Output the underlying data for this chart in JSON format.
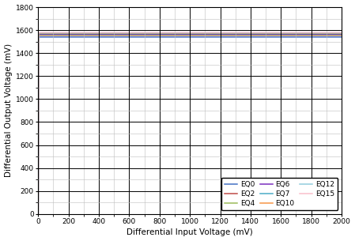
{
  "title": "",
  "xlabel": "Differential Input Voltage (mV)",
  "ylabel": "Differential Output Voltage (mV)",
  "xlim": [
    0,
    2000
  ],
  "ylim": [
    0,
    1800
  ],
  "xticks": [
    0,
    200,
    400,
    600,
    800,
    1000,
    1200,
    1400,
    1600,
    1800,
    2000
  ],
  "yticks": [
    0,
    200,
    400,
    600,
    800,
    1000,
    1200,
    1400,
    1600,
    1800
  ],
  "series": [
    {
      "label": "EQ0",
      "color": "#4472C4",
      "sat": 1540,
      "k": 1.8,
      "x0": 700
    },
    {
      "label": "EQ2",
      "color": "#BE4B48",
      "sat": 1555,
      "k": 1.8,
      "x0": 560
    },
    {
      "label": "EQ4",
      "color": "#9BBB59",
      "sat": 1560,
      "k": 1.8,
      "x0": 440
    },
    {
      "label": "EQ6",
      "color": "#7B2FBE",
      "sat": 1565,
      "k": 1.8,
      "x0": 340
    },
    {
      "label": "EQ7",
      "color": "#4BACC6",
      "sat": 1570,
      "k": 1.8,
      "x0": 270
    },
    {
      "label": "EQ10",
      "color": "#F79646",
      "sat": 1575,
      "k": 1.8,
      "x0": 200
    },
    {
      "label": "EQ12",
      "color": "#92CDDC",
      "sat": 1578,
      "k": 1.8,
      "x0": 145
    },
    {
      "label": "EQ15",
      "color": "#F9C0CB",
      "sat": 1580,
      "k": 1.8,
      "x0": 95
    }
  ],
  "background_color": "#FFFFFF",
  "minor_grid_color": "#BEBEBE",
  "major_grid_color": "#000000",
  "legend_fontsize": 6.5,
  "axis_fontsize": 7.5,
  "tick_fontsize": 6.5
}
